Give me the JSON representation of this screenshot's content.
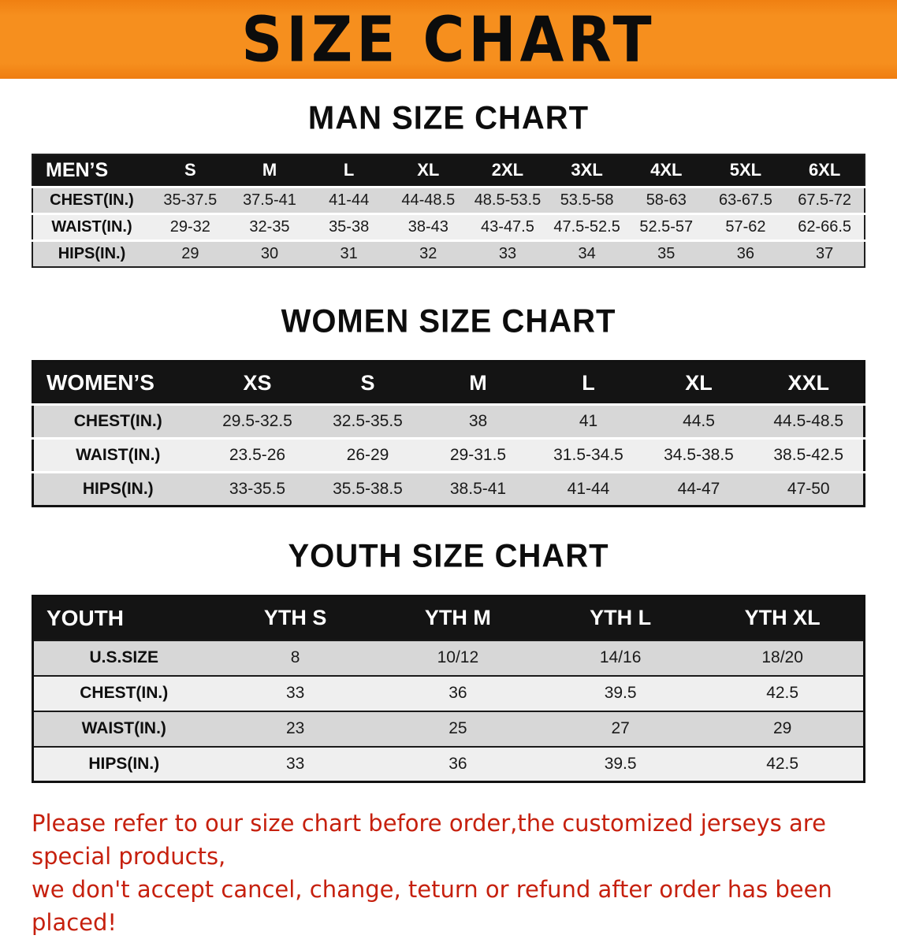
{
  "banner": {
    "title": "SIZE CHART"
  },
  "colors": {
    "banner_orange": "#f68f1e",
    "table_header_black": "#141414",
    "row_gray": "#d7d7d7",
    "row_light": "#efefef",
    "disclaimer_red": "#c6200e"
  },
  "sections": [
    {
      "id": "men",
      "heading": "MAN SIZE CHART",
      "table": {
        "label": "MEN’S",
        "columns": [
          "S",
          "M",
          "L",
          "XL",
          "2XL",
          "3XL",
          "4XL",
          "5XL",
          "6XL"
        ],
        "rows": [
          {
            "label": "CHEST(IN.)",
            "values": [
              "35-37.5",
              "37.5-41",
              "41-44",
              "44-48.5",
              "48.5-53.5",
              "53.5-58",
              "58-63",
              "63-67.5",
              "67.5-72"
            ]
          },
          {
            "label": "WAIST(IN.)",
            "values": [
              "29-32",
              "32-35",
              "35-38",
              "38-43",
              "43-47.5",
              "47.5-52.5",
              "52.5-57",
              "57-62",
              "62-66.5"
            ]
          },
          {
            "label": "HIPS(IN.)",
            "values": [
              "29",
              "30",
              "31",
              "32",
              "33",
              "34",
              "35",
              "36",
              "37"
            ]
          }
        ]
      }
    },
    {
      "id": "women",
      "heading": "WOMEN SIZE CHART",
      "table": {
        "label": "WOMEN’S",
        "columns": [
          "XS",
          "S",
          "M",
          "L",
          "XL",
          "XXL"
        ],
        "rows": [
          {
            "label": "CHEST(IN.)",
            "values": [
              "29.5-32.5",
              "32.5-35.5",
              "38",
              "41",
              "44.5",
              "44.5-48.5"
            ]
          },
          {
            "label": "WAIST(IN.)",
            "values": [
              "23.5-26",
              "26-29",
              "29-31.5",
              "31.5-34.5",
              "34.5-38.5",
              "38.5-42.5"
            ]
          },
          {
            "label": "HIPS(IN.)",
            "values": [
              "33-35.5",
              "35.5-38.5",
              "38.5-41",
              "41-44",
              "44-47",
              "47-50"
            ]
          }
        ]
      }
    },
    {
      "id": "youth",
      "heading": "YOUTH SIZE CHART",
      "table": {
        "label": "YOUTH",
        "columns": [
          "YTH S",
          "YTH M",
          "YTH L",
          "YTH XL"
        ],
        "rows": [
          {
            "label": "U.S.SIZE",
            "values": [
              "8",
              "10/12",
              "14/16",
              "18/20"
            ]
          },
          {
            "label": "CHEST(IN.)",
            "values": [
              "33",
              "36",
              "39.5",
              "42.5"
            ]
          },
          {
            "label": "WAIST(IN.)",
            "values": [
              "23",
              "25",
              "27",
              "29"
            ]
          },
          {
            "label": "HIPS(IN.)",
            "values": [
              "33",
              "36",
              "39.5",
              "42.5"
            ]
          }
        ]
      }
    }
  ],
  "disclaimer": {
    "line1": "Please refer to our size chart before order,the customized jerseys are special products,",
    "line2": "we don't accept cancel, change, teturn or refund after order has been placed!"
  }
}
